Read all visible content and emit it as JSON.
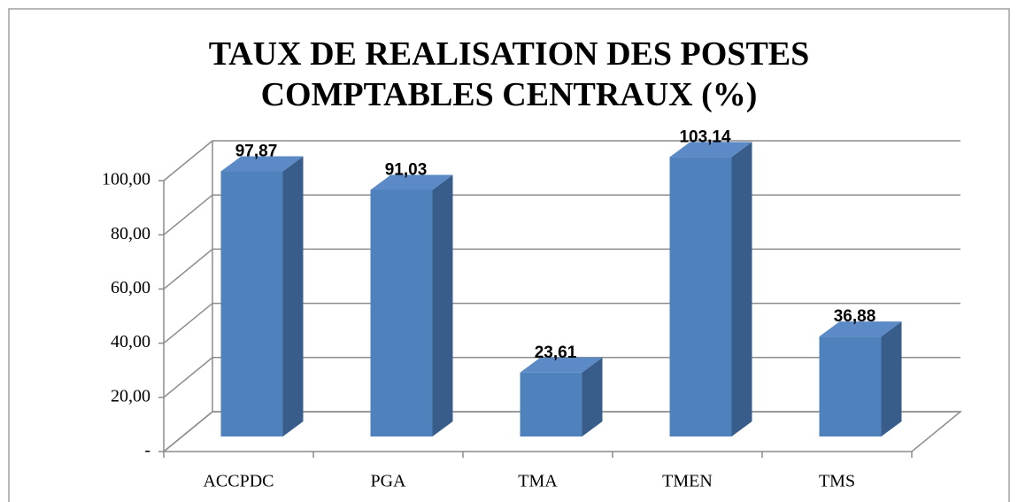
{
  "chart_data": {
    "type": "bar3d",
    "title": "TAUX DE REALISATION DES POSTES COMPTABLES CENTRAUX (%)",
    "categories": [
      "ACCPDC",
      "PGA",
      "TMA",
      "TMEN",
      "TMS"
    ],
    "values": [
      97.87,
      91.03,
      23.61,
      103.14,
      36.88
    ],
    "value_labels": [
      "97,87",
      "91,03",
      "23,61",
      "103,14",
      "36,88"
    ],
    "color": "#4f81bd",
    "ylim": [
      0,
      100
    ],
    "yticks": [
      {
        "value": 0,
        "label": "-"
      },
      {
        "value": 20,
        "label": "20,00"
      },
      {
        "value": 40,
        "label": "40,00"
      },
      {
        "value": 60,
        "label": "60,00"
      },
      {
        "value": 80,
        "label": "80,00"
      },
      {
        "value": 100,
        "label": "100,00"
      }
    ],
    "grid": true
  }
}
